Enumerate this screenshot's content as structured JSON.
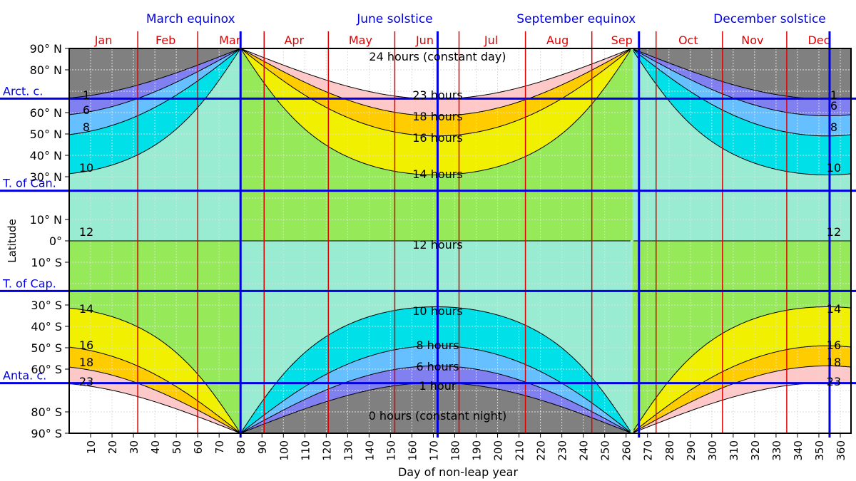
{
  "chart_data": {
    "type": "area",
    "title": "",
    "xlabel": "Day of non-leap year",
    "ylabel": "Latitude",
    "xlim": [
      0,
      365
    ],
    "ylim": [
      -90,
      90
    ],
    "x_ticks": [
      10,
      20,
      30,
      40,
      50,
      60,
      70,
      80,
      90,
      100,
      110,
      120,
      130,
      140,
      150,
      160,
      170,
      180,
      190,
      200,
      210,
      220,
      230,
      240,
      250,
      260,
      270,
      280,
      290,
      300,
      310,
      320,
      330,
      340,
      350,
      360
    ],
    "y_ticks": [
      {
        "value": 90,
        "label": "90° N"
      },
      {
        "value": 80,
        "label": "80° N"
      },
      {
        "value": 60,
        "label": "60° N"
      },
      {
        "value": 50,
        "label": "50° N"
      },
      {
        "value": 40,
        "label": "40° N"
      },
      {
        "value": 30,
        "label": "30° N"
      },
      {
        "value": 10,
        "label": "10° N"
      },
      {
        "value": 0,
        "label": "0°"
      },
      {
        "value": -10,
        "label": "10° S"
      },
      {
        "value": -30,
        "label": "30° S"
      },
      {
        "value": -40,
        "label": "40° S"
      },
      {
        "value": -50,
        "label": "50° S"
      },
      {
        "value": -60,
        "label": "60° S"
      },
      {
        "value": -80,
        "label": "80° S"
      },
      {
        "value": -90,
        "label": "90° S"
      }
    ],
    "special_latitudes": [
      {
        "label": "Arct. c.",
        "value": 66.56
      },
      {
        "label": "T. of Can.",
        "value": 23.44
      },
      {
        "label": "T. of Cap.",
        "value": -23.44
      },
      {
        "label": "Anta. c.",
        "value": -66.56
      }
    ],
    "events": [
      {
        "label": "March equinox",
        "day": 80
      },
      {
        "label": "June solstice",
        "day": 172
      },
      {
        "label": "September equinox",
        "day": 266
      },
      {
        "label": "December solstice",
        "day": 355
      }
    ],
    "months": [
      {
        "label": "Jan",
        "mid": 16
      },
      {
        "label": "Feb",
        "mid": 45
      },
      {
        "label": "Mar",
        "mid": 75
      },
      {
        "label": "Apr",
        "mid": 105
      },
      {
        "label": "May",
        "mid": 136
      },
      {
        "label": "Jun",
        "mid": 166
      },
      {
        "label": "Jul",
        "mid": 197
      },
      {
        "label": "Aug",
        "mid": 228
      },
      {
        "label": "Sep",
        "mid": 258
      },
      {
        "label": "Oct",
        "mid": 289
      },
      {
        "label": "Nov",
        "mid": 319
      },
      {
        "label": "Dec",
        "mid": 350
      }
    ],
    "month_boundaries": [
      32,
      60,
      91,
      121,
      152,
      182,
      213,
      244,
      274,
      305,
      335
    ],
    "series": [
      {
        "name": "0 hours (constant night)",
        "hours": 0,
        "color": "#808080"
      },
      {
        "name": "1 hour",
        "hours": 1,
        "color": "#8080f0"
      },
      {
        "name": "6 hours",
        "hours": 6,
        "color": "#66c0ff"
      },
      {
        "name": "8 hours",
        "hours": 8,
        "color": "#00e0e8"
      },
      {
        "name": "10 hours",
        "hours": 10,
        "color": "#99ecd2"
      },
      {
        "name": "12 hours",
        "hours": 12,
        "color": "#96ea5a"
      },
      {
        "name": "14 hours",
        "hours": 14,
        "color": "#f0f000"
      },
      {
        "name": "16 hours",
        "hours": 16,
        "color": "#ffcc00"
      },
      {
        "name": "18 hours",
        "hours": 18,
        "color": "#ffc8c8"
      },
      {
        "name": "23 hours",
        "hours": 23,
        "color": "#ffffff"
      },
      {
        "name": "24 hours (constant day)",
        "hours": 24,
        "color": "#ffffff"
      }
    ],
    "contour_labels": [
      {
        "text": "24 hours (constant day)",
        "day": 172,
        "lat": 85
      },
      {
        "text": "23 hours",
        "day": 172,
        "lat": 67
      },
      {
        "text": "18 hours",
        "day": 172,
        "lat": 57
      },
      {
        "text": "16 hours",
        "day": 172,
        "lat": 47
      },
      {
        "text": "14 hours",
        "day": 172,
        "lat": 30
      },
      {
        "text": "12 hours",
        "day": 172,
        "lat": -3
      },
      {
        "text": "10 hours",
        "day": 172,
        "lat": -34
      },
      {
        "text": "8 hours",
        "day": 172,
        "lat": -50
      },
      {
        "text": "6 hours",
        "day": 172,
        "lat": -60
      },
      {
        "text": "1 hour",
        "day": 172,
        "lat": -69
      },
      {
        "text": "0 hours (constant night)",
        "day": 172,
        "lat": -83
      },
      {
        "text": "1",
        "day": 8,
        "lat": 67
      },
      {
        "text": "6",
        "day": 8,
        "lat": 60
      },
      {
        "text": "8",
        "day": 8,
        "lat": 52
      },
      {
        "text": "10",
        "day": 8,
        "lat": 33
      },
      {
        "text": "12",
        "day": 8,
        "lat": 3
      },
      {
        "text": "14",
        "day": 8,
        "lat": -33
      },
      {
        "text": "16",
        "day": 8,
        "lat": -50
      },
      {
        "text": "18",
        "day": 8,
        "lat": -58
      },
      {
        "text": "23",
        "day": 8,
        "lat": -67
      },
      {
        "text": "1",
        "day": 357,
        "lat": 67
      },
      {
        "text": "6",
        "day": 357,
        "lat": 62
      },
      {
        "text": "8",
        "day": 357,
        "lat": 52
      },
      {
        "text": "10",
        "day": 357,
        "lat": 33
      },
      {
        "text": "12",
        "day": 357,
        "lat": 3
      },
      {
        "text": "14",
        "day": 357,
        "lat": -33
      },
      {
        "text": "16",
        "day": 357,
        "lat": -50
      },
      {
        "text": "18",
        "day": 357,
        "lat": -58
      },
      {
        "text": "23",
        "day": 357,
        "lat": -67
      }
    ],
    "colors": {
      "month_lines": "#e00000",
      "event_lines": "#0000e0",
      "grid": "#dddddd",
      "contours": "#000000"
    }
  }
}
